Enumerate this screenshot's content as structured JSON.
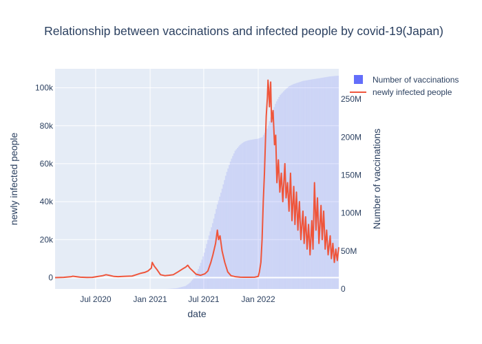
{
  "chart_data": {
    "type": "line",
    "title": "Relationship between vaccinations and infected people by covid-19(Japan)",
    "xlabel": "date",
    "ylabel_left": "newly infected people",
    "ylabel_right": "Number of vaccinations",
    "x_range": [
      "2020-02-15",
      "2022-09-30"
    ],
    "y_left_range": [
      -6000,
      110000
    ],
    "y_right_range": [
      0,
      290000000
    ],
    "x_ticks": [
      {
        "date": "2020-07-01",
        "label": "Jul 2020"
      },
      {
        "date": "2021-01-01",
        "label": "Jan 2021"
      },
      {
        "date": "2021-07-01",
        "label": "Jul 2021"
      },
      {
        "date": "2022-01-01",
        "label": "Jan 2022"
      }
    ],
    "y_left_ticks": [
      {
        "value": 0,
        "label": "0"
      },
      {
        "value": 20000,
        "label": "20k"
      },
      {
        "value": 40000,
        "label": "40k"
      },
      {
        "value": 60000,
        "label": "60k"
      },
      {
        "value": 80000,
        "label": "80k"
      },
      {
        "value": 100000,
        "label": "100k"
      }
    ],
    "y_right_ticks": [
      {
        "value": 0,
        "label": "0"
      },
      {
        "value": 50000000,
        "label": "50M"
      },
      {
        "value": 100000000,
        "label": "100M"
      },
      {
        "value": 150000000,
        "label": "150M"
      },
      {
        "value": 200000000,
        "label": "200M"
      },
      {
        "value": 250000000,
        "label": "250M"
      }
    ],
    "legend_position": "top-right",
    "grid": true,
    "series": [
      {
        "name": "Number of vaccinations",
        "type": "bar",
        "axis": "right",
        "color": "#636efa",
        "x": [
          "2021-02-17",
          "2021-03-01",
          "2021-04-01",
          "2021-05-01",
          "2021-05-15",
          "2021-06-01",
          "2021-06-15",
          "2021-07-01",
          "2021-07-15",
          "2021-08-01",
          "2021-08-15",
          "2021-09-01",
          "2021-09-15",
          "2021-10-01",
          "2021-10-15",
          "2021-11-01",
          "2021-11-15",
          "2021-12-01",
          "2021-12-15",
          "2022-01-01",
          "2022-01-15",
          "2022-02-01",
          "2022-02-15",
          "2022-03-01",
          "2022-03-15",
          "2022-04-01",
          "2022-04-15",
          "2022-05-01",
          "2022-06-01",
          "2022-07-01",
          "2022-08-01",
          "2022-09-01",
          "2022-09-30"
        ],
        "values": [
          10000,
          100000,
          1000000,
          4000000,
          8000000,
          16000000,
          28000000,
          45000000,
          65000000,
          88000000,
          110000000,
          132000000,
          152000000,
          170000000,
          182000000,
          190000000,
          194000000,
          196000000,
          197000000,
          198000000,
          200000000,
          212000000,
          230000000,
          245000000,
          255000000,
          262000000,
          267000000,
          270000000,
          274000000,
          276000000,
          278000000,
          280000000,
          281000000
        ]
      },
      {
        "name": "newly infected people",
        "type": "line",
        "axis": "left",
        "color": "#ef553b",
        "x": [
          "2020-02-15",
          "2020-03-15",
          "2020-04-10",
          "2020-04-15",
          "2020-05-10",
          "2020-06-01",
          "2020-06-20",
          "2020-07-10",
          "2020-07-25",
          "2020-08-05",
          "2020-08-15",
          "2020-09-01",
          "2020-09-15",
          "2020-10-01",
          "2020-10-15",
          "2020-11-01",
          "2020-11-15",
          "2020-12-01",
          "2020-12-15",
          "2020-12-25",
          "2021-01-05",
          "2021-01-08",
          "2021-01-15",
          "2021-01-25",
          "2021-02-05",
          "2021-02-20",
          "2021-03-05",
          "2021-03-20",
          "2021-04-05",
          "2021-04-20",
          "2021-05-01",
          "2021-05-08",
          "2021-05-15",
          "2021-05-25",
          "2021-06-05",
          "2021-06-20",
          "2021-07-05",
          "2021-07-15",
          "2021-07-25",
          "2021-08-01",
          "2021-08-10",
          "2021-08-16",
          "2021-08-20",
          "2021-08-25",
          "2021-09-01",
          "2021-09-10",
          "2021-09-20",
          "2021-10-01",
          "2021-10-15",
          "2021-11-01",
          "2021-11-15",
          "2021-12-01",
          "2021-12-20",
          "2022-01-01",
          "2022-01-05",
          "2022-01-10",
          "2022-01-14",
          "2022-01-18",
          "2022-01-22",
          "2022-01-25",
          "2022-01-28",
          "2022-02-01",
          "2022-02-03",
          "2022-02-05",
          "2022-02-08",
          "2022-02-12",
          "2022-02-15",
          "2022-02-20",
          "2022-02-25",
          "2022-03-01",
          "2022-03-05",
          "2022-03-10",
          "2022-03-15",
          "2022-03-20",
          "2022-03-25",
          "2022-04-01",
          "2022-04-05",
          "2022-04-10",
          "2022-04-15",
          "2022-04-20",
          "2022-04-25",
          "2022-05-01",
          "2022-05-05",
          "2022-05-10",
          "2022-05-15",
          "2022-05-20",
          "2022-05-25",
          "2022-06-01",
          "2022-06-05",
          "2022-06-10",
          "2022-06-15",
          "2022-06-20",
          "2022-06-25",
          "2022-07-01",
          "2022-07-05",
          "2022-07-10",
          "2022-07-15",
          "2022-07-20",
          "2022-07-25",
          "2022-08-01",
          "2022-08-05",
          "2022-08-10",
          "2022-08-15",
          "2022-08-20",
          "2022-08-25",
          "2022-09-01",
          "2022-09-05",
          "2022-09-10",
          "2022-09-15",
          "2022-09-20",
          "2022-09-25",
          "2022-09-30"
        ],
        "values": [
          0,
          100,
          500,
          700,
          200,
          50,
          100,
          600,
          1000,
          1500,
          1200,
          600,
          500,
          600,
          700,
          800,
          1500,
          2300,
          2800,
          3500,
          5000,
          8000,
          6000,
          4000,
          1500,
          1000,
          1200,
          1500,
          3000,
          4500,
          5500,
          6500,
          5000,
          3500,
          1800,
          1200,
          2000,
          3500,
          8000,
          12000,
          18000,
          25000,
          20000,
          22000,
          14000,
          8000,
          3000,
          1000,
          500,
          200,
          150,
          150,
          200,
          600,
          3000,
          8000,
          20000,
          40000,
          55000,
          70000,
          85000,
          95000,
          104000,
          100000,
          90000,
          103000,
          82000,
          88000,
          70000,
          75000,
          50000,
          62000,
          45000,
          55000,
          40000,
          60000,
          42000,
          50000,
          35000,
          55000,
          30000,
          48000,
          28000,
          45000,
          25000,
          40000,
          20000,
          35000,
          18000,
          32000,
          15000,
          28000,
          12000,
          30000,
          15000,
          50000,
          25000,
          42000,
          18000,
          38000,
          20000,
          35000,
          15000,
          25000,
          12000,
          22000,
          10000,
          18000,
          8000,
          15000,
          9000,
          16000
        ]
      }
    ]
  }
}
